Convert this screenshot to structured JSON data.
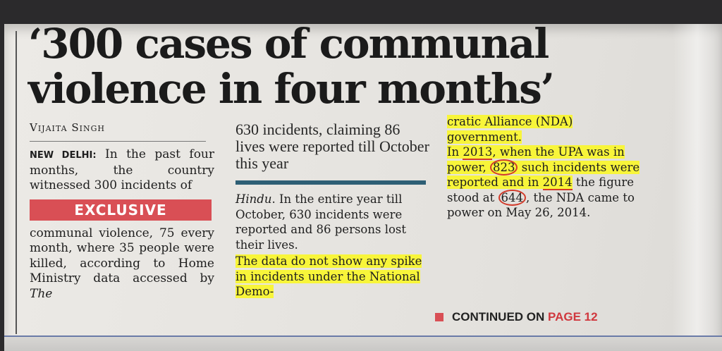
{
  "headline": {
    "line1": "‘300 cases of communal",
    "line2": "violence in four months’"
  },
  "byline": "Vijaita Singh",
  "column1": {
    "dateline": "NEW DELHI:",
    "text_a": " In the past four months, the country witnessed 300 incidents of",
    "exclusive_label": "EXCLUSIVE",
    "text_b": "communal violence, 75 every month, where 35 people were killed, according to Home Ministry data accessed by ",
    "text_b_italic": "The"
  },
  "column2": {
    "pullquote": "630 incidents, claiming 86 lives were reported till October this year",
    "italic_start": "Hindu",
    "text_a": ". In the entire year till October, 630 incidents were reported and 86 persons lost their lives.",
    "text_highlight": "The data do not show any spike in incidents under the National Demo-"
  },
  "column3": {
    "text_highlight": "cratic Alliance (NDA) government.",
    "in_word": "In ",
    "year1": "2013",
    "text_a": ", when the UPA was in power, ",
    "count1": "823",
    "text_b": " such incidents were reported and in ",
    "year2": "2014",
    "text_c": " the figure stood at ",
    "count2": "644",
    "text_d": ", the NDA came to power on May 26, 2014."
  },
  "continued": {
    "label": "CONTINUED ON ",
    "page": "PAGE 12"
  },
  "colors": {
    "highlight": "#f8f53a",
    "exclusive_bg": "#d94f55",
    "pen_circle": "#d23a2a",
    "rule": "#2e5f75"
  }
}
